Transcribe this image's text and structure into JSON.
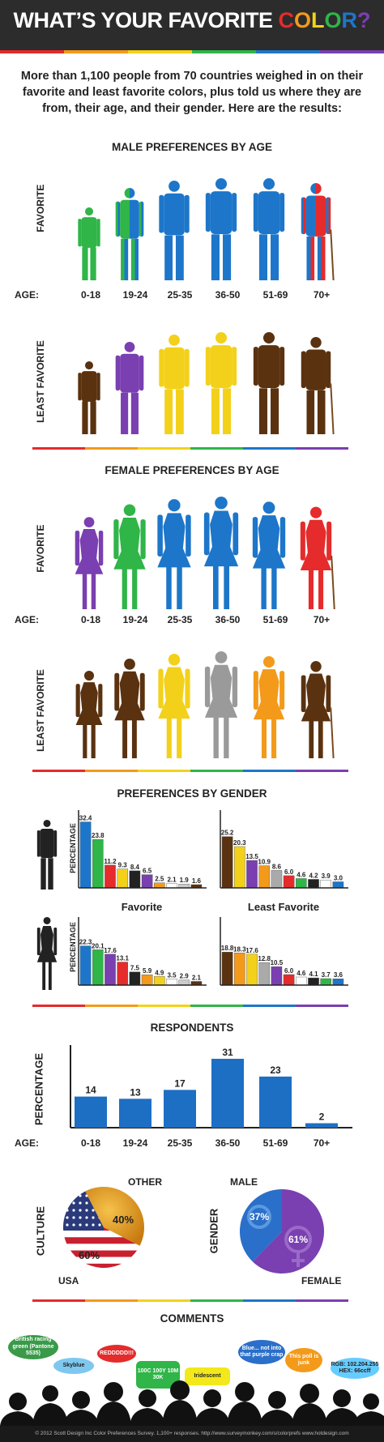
{
  "header": {
    "title_part1": "WHAT’S YOUR FAVORITE ",
    "title_letters": [
      {
        "ch": "C",
        "color": "#e52b2b"
      },
      {
        "ch": "O",
        "color": "#f39a1a"
      },
      {
        "ch": "L",
        "color": "#f3d11a"
      },
      {
        "ch": "O",
        "color": "#30b548"
      },
      {
        "ch": "R",
        "color": "#1d76c9"
      },
      {
        "ch": "?",
        "color": "#7a3fb0"
      }
    ]
  },
  "rainbow": [
    "#e52b2b",
    "#f39a1a",
    "#f3d11a",
    "#30b548",
    "#1d76c9",
    "#7a3fb0"
  ],
  "intro": "More than 1,100 people from 70 countries weighed in on their favorite and least favorite colors, plus told us where they are from, their age, and their gender. Here are the results:",
  "male_age": {
    "title": "MALE PREFERENCES BY AGE",
    "favorite_label": "FAVORITE",
    "least_label": "LEAST FAVORITE",
    "age_label": "AGE:",
    "ages": [
      "0-18",
      "19-24",
      "25-35",
      "36-50",
      "51-69",
      "70+"
    ],
    "favorite_colors": [
      [
        "#30b548"
      ],
      [
        "#30b548",
        "#1d76c9"
      ],
      [
        "#1d76c9"
      ],
      [
        "#1d76c9"
      ],
      [
        "#1d76c9"
      ],
      [
        "#1d76c9",
        "#e52b2b"
      ]
    ],
    "least_colors": [
      [
        "#5a3210"
      ],
      [
        "#7a3fb0"
      ],
      [
        "#f3d11a"
      ],
      [
        "#f3d11a"
      ],
      [
        "#5a3210"
      ],
      [
        "#5a3210"
      ]
    ]
  },
  "female_age": {
    "title": "FEMALE PREFERENCES BY AGE",
    "favorite_label": "FAVORITE",
    "least_label": "LEAST FAVORITE",
    "age_label": "AGE:",
    "ages": [
      "0-18",
      "19-24",
      "25-35",
      "36-50",
      "51-69",
      "70+"
    ],
    "favorite_colors": [
      [
        "#7a3fb0"
      ],
      [
        "#30b548"
      ],
      [
        "#1d76c9"
      ],
      [
        "#1d76c9"
      ],
      [
        "#1d76c9"
      ],
      [
        "#e52b2b"
      ]
    ],
    "least_colors": [
      [
        "#5a3210"
      ],
      [
        "#5a3210"
      ],
      [
        "#f3d11a"
      ],
      [
        "#9a9a9a"
      ],
      [
        "#f39a1a"
      ],
      [
        "#5a3210"
      ]
    ]
  },
  "gender": {
    "title": "PREFERENCES BY GENDER",
    "ylabel": "PERCENTAGE",
    "favorite_label": "Favorite",
    "least_label": "Least Favorite"
  },
  "respondents_title": "RESPONDENTS",
  "respondents_ylabel": "PERCENTAGE",
  "respondents_age_label": "AGE:",
  "culture": {
    "label": "CULTURE",
    "other_label": "OTHER",
    "usa_label": "USA",
    "other_pct_text": "40%",
    "usa_pct_text": "60%"
  },
  "gender_pie": {
    "label": "GENDER",
    "male_label": "MALE",
    "female_label": "FEMALE",
    "male_pct_text": "37%",
    "female_pct_text": "61%"
  },
  "comments": {
    "title": "COMMENTS",
    "bubbles": [
      {
        "text": "British racing green (Pantone 5535)",
        "color": "#3a9a4a",
        "text_color": "#ffffff"
      },
      {
        "text": "Skyblue",
        "color": "#7ec8f0",
        "text_color": "#222222"
      },
      {
        "text": "REDDDDD!!!",
        "color": "#e52b2b",
        "text_color": "#ffffff"
      },
      {
        "text": "100C 100Y 10M 30K",
        "color": "#30b548",
        "text_color": "#ffffff"
      },
      {
        "text": "Iridescent",
        "color": "#f3e81a",
        "text_color": "#222222"
      },
      {
        "text": "Blue... not into that purple crap",
        "color": "#2a6fc9",
        "text_color": "#ffffff"
      },
      {
        "text": "This poll is junk",
        "color": "#f39a1a",
        "text_color": "#ffffff"
      },
      {
        "text": "RGB: 102.204.255 HEX: 66ccff",
        "color": "#66ccff",
        "text_color": "#222222"
      }
    ]
  },
  "footer": "© 2012 Scott Design Inc Color Preferences Survey. 1,100+ responses. http://www.surveymonkey.com/s/colorprefs  www.hotdesign.com",
  "chart_data": [
    {
      "type": "bar",
      "title": "Male Favorite",
      "values": [
        32.4,
        23.8,
        11.2,
        9.3,
        8.4,
        6.5,
        2.5,
        2.1,
        1.9,
        1.6
      ],
      "colors": [
        "#1d76c9",
        "#30b548",
        "#e52b2b",
        "#f3d11a",
        "#222222",
        "#7a3fb0",
        "#f39a1a",
        "#ffffff",
        "#cccccc",
        "#5a3210"
      ],
      "ylim": [
        0,
        35
      ]
    },
    {
      "type": "bar",
      "title": "Male Least Favorite",
      "values": [
        25.2,
        20.3,
        13.5,
        10.9,
        8.6,
        6.0,
        4.6,
        4.2,
        3.9,
        3.0
      ],
      "colors": [
        "#5a3210",
        "#f3d11a",
        "#7a3fb0",
        "#f39a1a",
        "#aaaaaa",
        "#e52b2b",
        "#30b548",
        "#222222",
        "#ffffff",
        "#1d76c9"
      ],
      "ylim": [
        0,
        35
      ]
    },
    {
      "type": "bar",
      "title": "Female Favorite",
      "values": [
        22.3,
        20.1,
        17.6,
        13.1,
        7.5,
        5.9,
        4.9,
        3.5,
        2.9,
        2.1
      ],
      "colors": [
        "#1d76c9",
        "#30b548",
        "#7a3fb0",
        "#e52b2b",
        "#222222",
        "#f39a1a",
        "#f3d11a",
        "#ffffff",
        "#cccccc",
        "#5a3210"
      ],
      "ylim": [
        0,
        35
      ]
    },
    {
      "type": "bar",
      "title": "Female Least Favorite",
      "values": [
        18.8,
        18.3,
        17.6,
        12.8,
        10.5,
        6.0,
        4.6,
        4.1,
        3.7,
        3.6
      ],
      "colors": [
        "#5a3210",
        "#f39a1a",
        "#f3d11a",
        "#aaaaaa",
        "#7a3fb0",
        "#e52b2b",
        "#ffffff",
        "#222222",
        "#30b548",
        "#1d76c9"
      ],
      "ylim": [
        0,
        35
      ]
    },
    {
      "type": "bar",
      "title": "RESPONDENTS",
      "categories": [
        "0-18",
        "19-24",
        "25-35",
        "36-50",
        "51-69",
        "70+"
      ],
      "values": [
        14,
        13,
        17,
        31,
        23,
        2
      ],
      "ylabel": "PERCENTAGE",
      "ylim": [
        0,
        35
      ]
    },
    {
      "type": "pie",
      "title": "CULTURE",
      "categories": [
        "USA",
        "OTHER"
      ],
      "values": [
        60,
        40
      ]
    },
    {
      "type": "pie",
      "title": "GENDER",
      "categories": [
        "MALE",
        "FEMALE"
      ],
      "values": [
        37,
        61
      ]
    }
  ]
}
